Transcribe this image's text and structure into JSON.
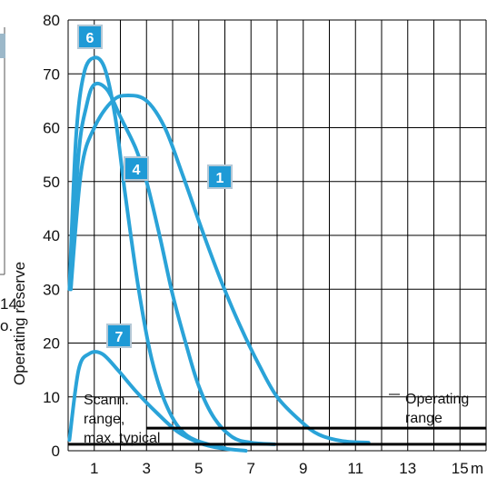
{
  "chart_data": {
    "type": "line",
    "ylabel": "Operating reserve",
    "x_unit": "m",
    "xlim": [
      0,
      16
    ],
    "ylim": [
      0,
      80
    ],
    "x_ticks": [
      1,
      3,
      5,
      7,
      9,
      11,
      13,
      15
    ],
    "y_ticks": [
      0,
      10,
      20,
      30,
      40,
      50,
      60,
      70,
      80
    ],
    "grid": true,
    "series": [
      {
        "name": "6",
        "color": "#2aa3d8",
        "points": [
          [
            0.05,
            30
          ],
          [
            0.3,
            58
          ],
          [
            0.6,
            70
          ],
          [
            1.0,
            73
          ],
          [
            1.4,
            71
          ],
          [
            1.8,
            62
          ],
          [
            2.2,
            47
          ],
          [
            2.7,
            30
          ],
          [
            3.2,
            17
          ],
          [
            3.8,
            8
          ],
          [
            4.5,
            3
          ],
          [
            5.5,
            1
          ],
          [
            6.0,
            0.5
          ]
        ]
      },
      {
        "name": "4",
        "color": "#2aa3d8",
        "points": [
          [
            0.1,
            30
          ],
          [
            0.4,
            55
          ],
          [
            0.7,
            64
          ],
          [
            1.0,
            68
          ],
          [
            1.5,
            67
          ],
          [
            2.0,
            62
          ],
          [
            2.6,
            56
          ],
          [
            3.0,
            50
          ],
          [
            3.5,
            40
          ],
          [
            4.0,
            29
          ],
          [
            4.5,
            20
          ],
          [
            5.0,
            12
          ],
          [
            5.6,
            6
          ],
          [
            6.3,
            2.5
          ],
          [
            7.0,
            1.5
          ],
          [
            7.9,
            1.2
          ]
        ]
      },
      {
        "name": "1",
        "color": "#2aa3d8",
        "points": [
          [
            0.1,
            30
          ],
          [
            0.5,
            52
          ],
          [
            1.0,
            60
          ],
          [
            1.7,
            65
          ],
          [
            2.3,
            66
          ],
          [
            3.0,
            65
          ],
          [
            3.7,
            60
          ],
          [
            4.4,
            51
          ],
          [
            5.2,
            40
          ],
          [
            5.9,
            31
          ],
          [
            6.6,
            23
          ],
          [
            7.3,
            16
          ],
          [
            8.0,
            10
          ],
          [
            8.9,
            5.5
          ],
          [
            9.6,
            3
          ],
          [
            10.5,
            1.8
          ],
          [
            11.5,
            1.5
          ]
        ]
      },
      {
        "name": "7",
        "color": "#2aa3d8",
        "points": [
          [
            0.05,
            2
          ],
          [
            0.4,
            15
          ],
          [
            0.8,
            18
          ],
          [
            1.3,
            18
          ],
          [
            1.9,
            15
          ],
          [
            2.6,
            11
          ],
          [
            3.4,
            7
          ],
          [
            4.2,
            3.5
          ],
          [
            5.0,
            1.5
          ],
          [
            5.8,
            0.5
          ],
          [
            6.8,
            0
          ]
        ]
      }
    ],
    "operating_range_line": {
      "label": "Operating range",
      "x_start": 3.0,
      "x_end": 16,
      "y": 4.2
    },
    "scan_range_line": {
      "label": "Scann. range, max. typical",
      "x_start": 0,
      "x_end": 16,
      "y": 1.2
    }
  },
  "annotations": {
    "scan_label": [
      "Scann.",
      "range,",
      "max. typical"
    ],
    "operating_label": [
      "Operating",
      "range"
    ],
    "cut_left_numbers": [
      "14",
      "o."
    ]
  },
  "colors": {
    "curve": "#2aa3d8",
    "badge_fill": "#1e9ad6",
    "badge_border": "#b4c8d6",
    "grid": "#000000"
  }
}
